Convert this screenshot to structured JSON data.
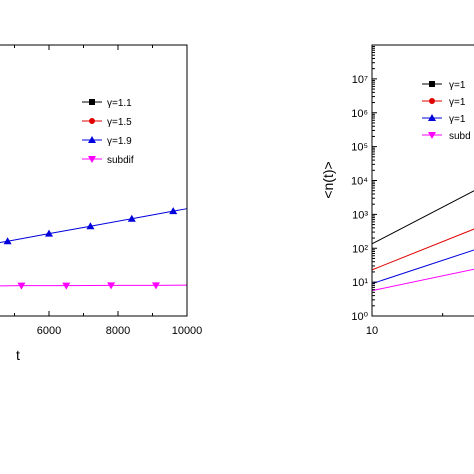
{
  "chart_data": [
    {
      "type": "line",
      "xlabel": "t",
      "ylabel": "",
      "xlim": [
        4000,
        10000
      ],
      "ylim": [
        0,
        1
      ],
      "x_ticks": [
        "6000",
        "8000",
        "10000"
      ],
      "y_ticks": [],
      "legend_position": "top-right",
      "series": [
        {
          "name": "γ=1.1",
          "color": "#000000",
          "marker": "square",
          "x": [],
          "y": []
        },
        {
          "name": "γ=1.5",
          "color": "#e00000",
          "marker": "circle",
          "x": [],
          "y": []
        },
        {
          "name": "γ=1.9",
          "color": "#0000dd",
          "marker": "triangle-up",
          "x": [
            4200,
            4800,
            6000,
            7200,
            8400,
            9600,
            10000
          ],
          "y": [
            0.263,
            0.276,
            0.304,
            0.331,
            0.359,
            0.387,
            0.396
          ]
        },
        {
          "name": "subdif",
          "color": "#ff00ff",
          "marker": "triangle-down",
          "x": [
            4200,
            5200,
            6500,
            7800,
            9100,
            10000
          ],
          "y": [
            0.111,
            0.112,
            0.112,
            0.113,
            0.113,
            0.114
          ]
        }
      ]
    },
    {
      "type": "line",
      "xlabel": "",
      "ylabel": "<n(t)>",
      "xscale": "log",
      "yscale": "log",
      "xlim": [
        10,
        30
      ],
      "ylim": [
        1,
        100000000
      ],
      "x_ticks": [
        "10"
      ],
      "y_ticks": [
        "10⁰",
        "10¹",
        "10²",
        "10³",
        "10⁴",
        "10⁵",
        "10⁶",
        "10⁷"
      ],
      "legend_position": "top-right",
      "series": [
        {
          "name": "γ=1",
          "color": "#000000",
          "marker": "square",
          "x": [
            10,
            28
          ],
          "y": [
            135,
            5500
          ]
        },
        {
          "name": "γ=1",
          "color": "#e00000",
          "marker": "circle",
          "x": [
            10,
            28
          ],
          "y": [
            23,
            400
          ]
        },
        {
          "name": "γ=1",
          "color": "#0000dd",
          "marker": "triangle-up",
          "x": [
            10,
            28
          ],
          "y": [
            9,
            95
          ]
        },
        {
          "name": "subd",
          "color": "#ff00ff",
          "marker": "triangle-down",
          "x": [
            10,
            28
          ],
          "y": [
            5.6,
            25
          ]
        }
      ]
    }
  ]
}
